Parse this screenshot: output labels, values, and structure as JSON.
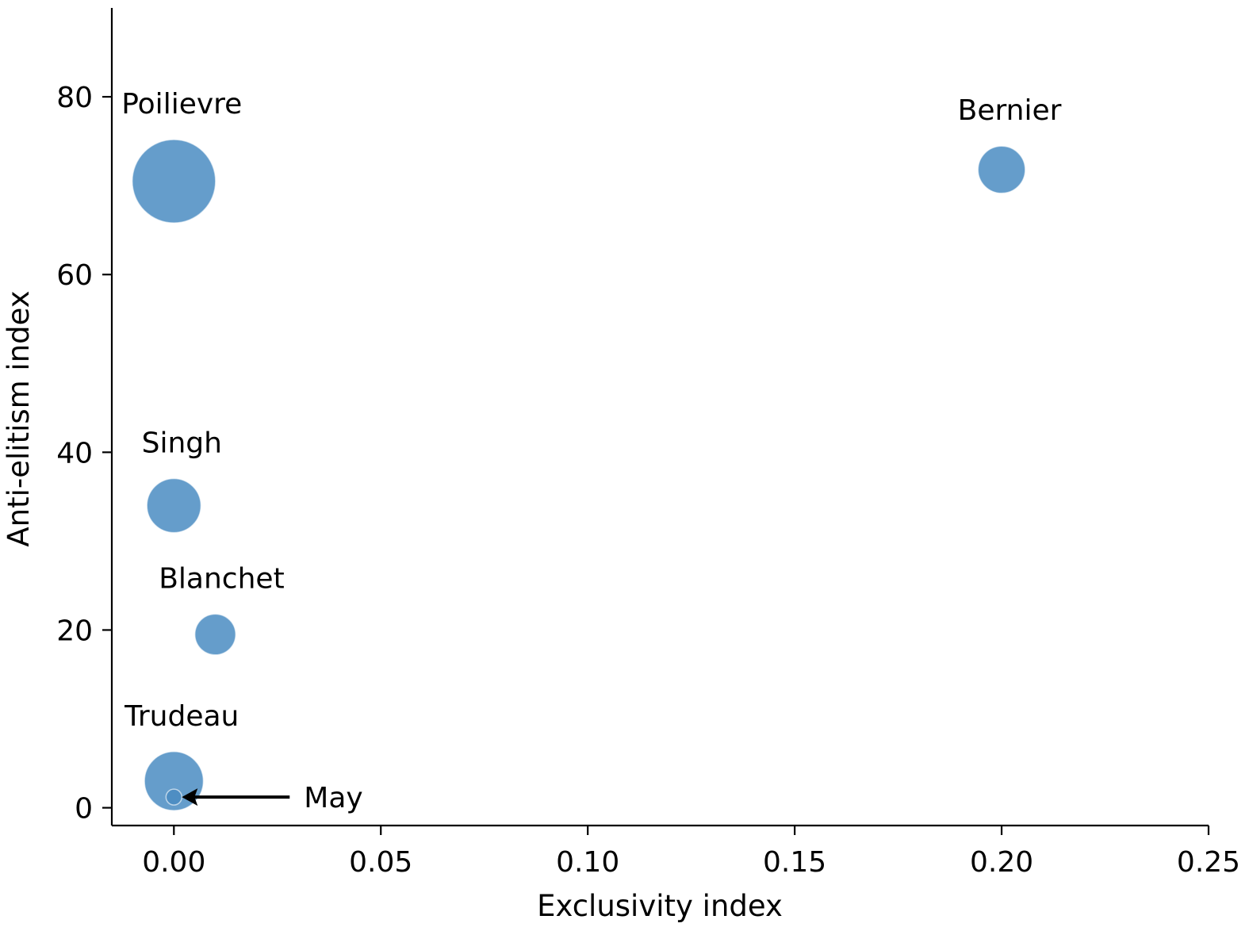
{
  "chart_data": {
    "type": "scatter",
    "xlabel": "Exclusivity index",
    "ylabel": "Anti-elitism index",
    "xlim": [
      -0.015,
      0.25
    ],
    "ylim": [
      -2,
      90
    ],
    "x_ticks": [
      0.0,
      0.05,
      0.1,
      0.15,
      0.2,
      0.25
    ],
    "x_tick_labels": [
      "0.00",
      "0.05",
      "0.10",
      "0.15",
      "0.20",
      "0.25"
    ],
    "y_ticks": [
      0,
      20,
      40,
      60,
      80
    ],
    "y_tick_labels": [
      "0",
      "20",
      "40",
      "60",
      "80"
    ],
    "grid": false,
    "marker_color": "#4a8cc2",
    "marker_alpha": 0.85,
    "points": [
      {
        "label": "Poilievre",
        "x": 0.0,
        "y": 70.5,
        "size": 5.0
      },
      {
        "label": "Bernier",
        "x": 0.2,
        "y": 71.8,
        "size": 1.6
      },
      {
        "label": "Singh",
        "x": 0.0,
        "y": 34.0,
        "size": 2.1
      },
      {
        "label": "Blanchet",
        "x": 0.01,
        "y": 19.5,
        "size": 1.2
      },
      {
        "label": "Trudeau",
        "x": 0.0,
        "y": 3.0,
        "size": 2.5
      },
      {
        "label": "May",
        "x": 0.0,
        "y": 1.2,
        "size": 0.18
      }
    ],
    "annotations": [
      {
        "text": "May",
        "target": "May",
        "arrow": true
      }
    ]
  }
}
